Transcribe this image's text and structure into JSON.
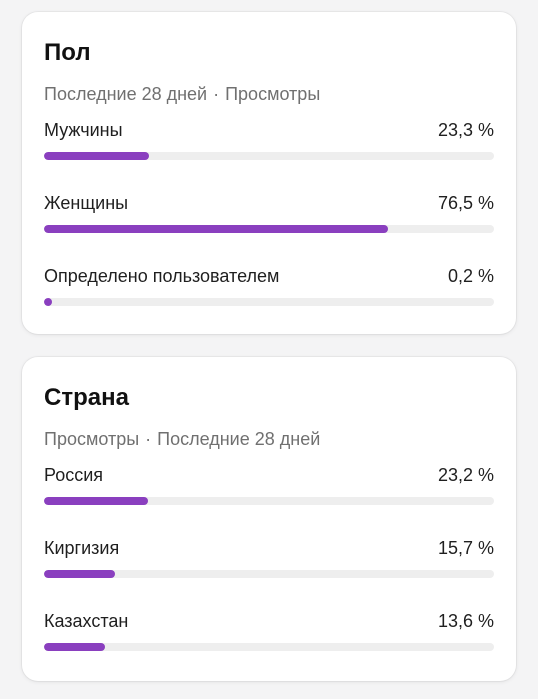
{
  "colors": {
    "accent": "#8a3fbf",
    "track": "#eeeeee",
    "subtitle": "#707070"
  },
  "gender": {
    "title": "Пол",
    "subtitle_left": "Последние 28 дней",
    "subtitle_sep": "·",
    "subtitle_right": "Просмотры",
    "rows": [
      {
        "label": "Мужчины",
        "value": "23,3 %",
        "fraction": 0.233
      },
      {
        "label": "Женщины",
        "value": "76,5 %",
        "fraction": 0.765
      },
      {
        "label": "Определено пользователем",
        "value": "0,2 %",
        "fraction": 0.002
      }
    ]
  },
  "country": {
    "title": "Страна",
    "subtitle_left": "Просмотры",
    "subtitle_sep": "·",
    "subtitle_right": "Последние 28 дней",
    "rows": [
      {
        "label": "Россия",
        "value": "23,2 %",
        "fraction": 0.232
      },
      {
        "label": "Киргизия",
        "value": "15,7 %",
        "fraction": 0.157
      },
      {
        "label": "Казахстан",
        "value": "13,6 %",
        "fraction": 0.136
      }
    ]
  }
}
